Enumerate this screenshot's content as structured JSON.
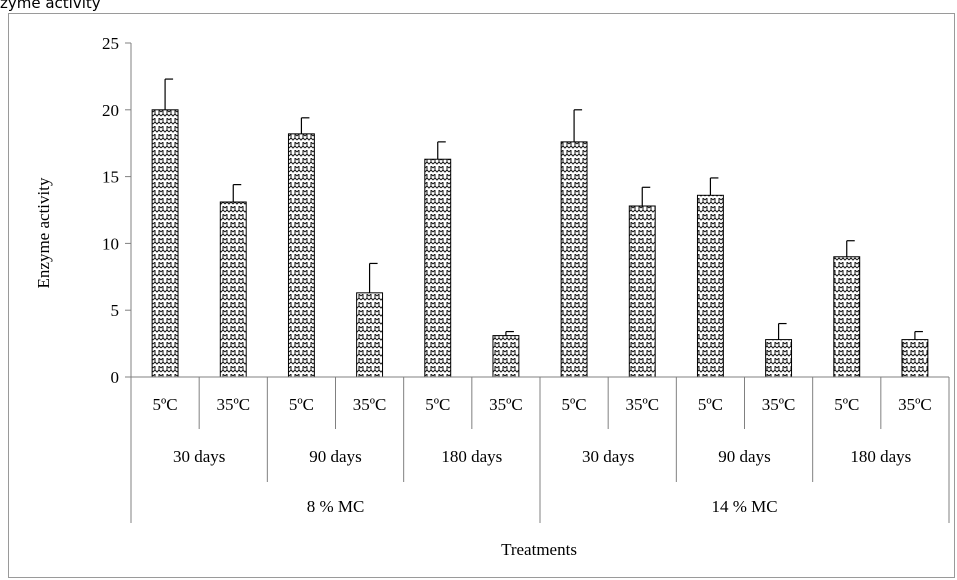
{
  "caption_fragment": "zyme activity",
  "chart_data": {
    "type": "bar",
    "ylabel": "Enzyme  activity",
    "xlabel": "Treatments",
    "ylim": [
      0,
      25
    ],
    "yticks": [
      0,
      5,
      10,
      15,
      20,
      25
    ],
    "fill_pattern": "zigzag-crosshatch",
    "colors": {
      "bar_fill": "#ffffff",
      "bar_stroke": "#000000",
      "pattern": "#1a1a1a",
      "axis": "#808080"
    },
    "categories": [
      {
        "temp": "5ºC",
        "period": "30 days",
        "moisture": "8 % MC"
      },
      {
        "temp": "35ºC",
        "period": "30 days",
        "moisture": "8 % MC"
      },
      {
        "temp": "5ºC",
        "period": "90 days",
        "moisture": "8 % MC"
      },
      {
        "temp": "35ºC",
        "period": "90 days",
        "moisture": "8 % MC"
      },
      {
        "temp": "5ºC",
        "period": "180 days",
        "moisture": "8 % MC"
      },
      {
        "temp": "35ºC",
        "period": "180 days",
        "moisture": "8 % MC"
      },
      {
        "temp": "5ºC",
        "period": "30 days",
        "moisture": "14 % MC"
      },
      {
        "temp": "35ºC",
        "period": "30 days",
        "moisture": "14 % MC"
      },
      {
        "temp": "5ºC",
        "period": "90 days",
        "moisture": "14 % MC"
      },
      {
        "temp": "35ºC",
        "period": "90 days",
        "moisture": "14 % MC"
      },
      {
        "temp": "5ºC",
        "period": "180 days",
        "moisture": "14 % MC"
      },
      {
        "temp": "35ºC",
        "period": "180 days",
        "moisture": "14 % MC"
      }
    ],
    "values": [
      20.0,
      13.1,
      18.2,
      6.3,
      16.3,
      3.1,
      17.6,
      12.8,
      13.6,
      2.8,
      9.0,
      2.8
    ],
    "errors": [
      2.3,
      1.3,
      1.2,
      2.2,
      1.3,
      0.3,
      2.4,
      1.4,
      1.3,
      1.2,
      1.2,
      0.6
    ],
    "period_groups": [
      "30 days",
      "90 days",
      "180 days",
      "30 days",
      "90 days",
      "180 days"
    ],
    "moisture_groups": [
      "8 % MC",
      "14 % MC"
    ]
  }
}
